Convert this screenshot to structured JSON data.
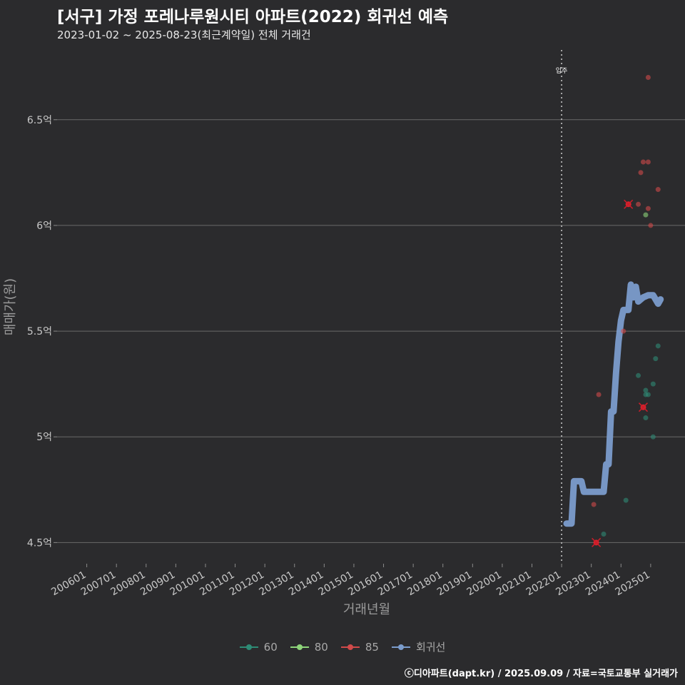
{
  "title": "[서구] 가정 포레나루원시티 아파트(2022) 회귀선 예측",
  "subtitle": "2023-01-02 ~ 2025-08-23(최근계약일) 전체 거래건",
  "footer": "ⓒ디아파트(dapt.kr) / 2025.09.09 / 자료=국토교통부 실거래가",
  "colors": {
    "background": "#2b2b2d",
    "grid": "#6a6a6a",
    "series_60": "#2e8b75",
    "series_80": "#8ed47a",
    "series_85": "#d04a4a",
    "regression": "#7b9ccc"
  },
  "legend": [
    {
      "label": "60",
      "color": "#2e8b75"
    },
    {
      "label": "80",
      "color": "#8ed47a"
    },
    {
      "label": "85",
      "color": "#d04a4a"
    },
    {
      "label": "회귀선",
      "color": "#7b9ccc"
    }
  ],
  "chart_data": {
    "type": "scatter",
    "xlabel": "거래년월",
    "ylabel": "매매가(원)",
    "y_ticks": [
      {
        "value": 4.5,
        "label": "4.5억"
      },
      {
        "value": 5.0,
        "label": "5억"
      },
      {
        "value": 5.5,
        "label": "5.5억"
      },
      {
        "value": 6.0,
        "label": "6억"
      },
      {
        "value": 6.5,
        "label": "6.5억"
      }
    ],
    "x_ticks": [
      "200601",
      "200701",
      "200801",
      "200901",
      "201001",
      "201101",
      "201201",
      "201301",
      "201401",
      "201501",
      "201601",
      "201701",
      "201801",
      "201901",
      "202001",
      "202101",
      "202201",
      "202301",
      "202401",
      "202501"
    ],
    "xlim": [
      "2005-01",
      "2025-12"
    ],
    "ylim": [
      4.4,
      6.83
    ],
    "grid": true,
    "legend_position": "bottom",
    "annotation": {
      "label": "입주",
      "x": "2022-01"
    },
    "series": [
      {
        "name": "60",
        "points": [
          {
            "x": "2023-06",
            "y": 4.54
          },
          {
            "x": "2024-03",
            "y": 4.7
          },
          {
            "x": "2024-08",
            "y": 5.29
          },
          {
            "x": "2024-10",
            "y": 5.14,
            "marker": "x"
          },
          {
            "x": "2024-11",
            "y": 5.22
          },
          {
            "x": "2024-11",
            "y": 5.2
          },
          {
            "x": "2024-12",
            "y": 5.2
          },
          {
            "x": "2024-11",
            "y": 5.09
          },
          {
            "x": "2025-02",
            "y": 5.25
          },
          {
            "x": "2025-02",
            "y": 5.0
          },
          {
            "x": "2025-03",
            "y": 5.37
          },
          {
            "x": "2025-04",
            "y": 5.43
          }
        ]
      },
      {
        "name": "80",
        "points": [
          {
            "x": "2024-11",
            "y": 6.05
          }
        ]
      },
      {
        "name": "85",
        "points": [
          {
            "x": "2023-02",
            "y": 4.68
          },
          {
            "x": "2023-03",
            "y": 4.5,
            "marker": "x"
          },
          {
            "x": "2023-04",
            "y": 5.2
          },
          {
            "x": "2024-02",
            "y": 5.5
          },
          {
            "x": "2024-04",
            "y": 6.1,
            "marker": "x"
          },
          {
            "x": "2024-08",
            "y": 6.1
          },
          {
            "x": "2024-09",
            "y": 6.25
          },
          {
            "x": "2024-10",
            "y": 6.3
          },
          {
            "x": "2024-12",
            "y": 6.3
          },
          {
            "x": "2024-12",
            "y": 6.08
          },
          {
            "x": "2025-01",
            "y": 6.0
          },
          {
            "x": "2024-12",
            "y": 6.7
          },
          {
            "x": "2025-04",
            "y": 6.17
          }
        ]
      },
      {
        "name": "회귀선",
        "line": [
          {
            "x": "2022-03",
            "y": 4.59
          },
          {
            "x": "2022-05",
            "y": 4.59
          },
          {
            "x": "2022-06",
            "y": 4.79
          },
          {
            "x": "2022-09",
            "y": 4.79
          },
          {
            "x": "2022-10",
            "y": 4.74
          },
          {
            "x": "2023-06",
            "y": 4.74
          },
          {
            "x": "2023-07",
            "y": 4.87
          },
          {
            "x": "2023-08",
            "y": 4.87
          },
          {
            "x": "2023-09",
            "y": 5.12
          },
          {
            "x": "2023-10",
            "y": 5.12
          },
          {
            "x": "2023-11",
            "y": 5.3
          },
          {
            "x": "2023-12",
            "y": 5.45
          },
          {
            "x": "2024-01",
            "y": 5.55
          },
          {
            "x": "2024-02",
            "y": 5.6
          },
          {
            "x": "2024-04",
            "y": 5.6
          },
          {
            "x": "2024-05",
            "y": 5.72
          },
          {
            "x": "2024-06",
            "y": 5.66
          },
          {
            "x": "2024-07",
            "y": 5.71
          },
          {
            "x": "2024-08",
            "y": 5.64
          },
          {
            "x": "2024-10",
            "y": 5.66
          },
          {
            "x": "2024-12",
            "y": 5.67
          },
          {
            "x": "2025-02",
            "y": 5.67
          },
          {
            "x": "2025-03",
            "y": 5.65
          },
          {
            "x": "2025-04",
            "y": 5.63
          },
          {
            "x": "2025-05",
            "y": 5.65
          }
        ]
      }
    ]
  }
}
